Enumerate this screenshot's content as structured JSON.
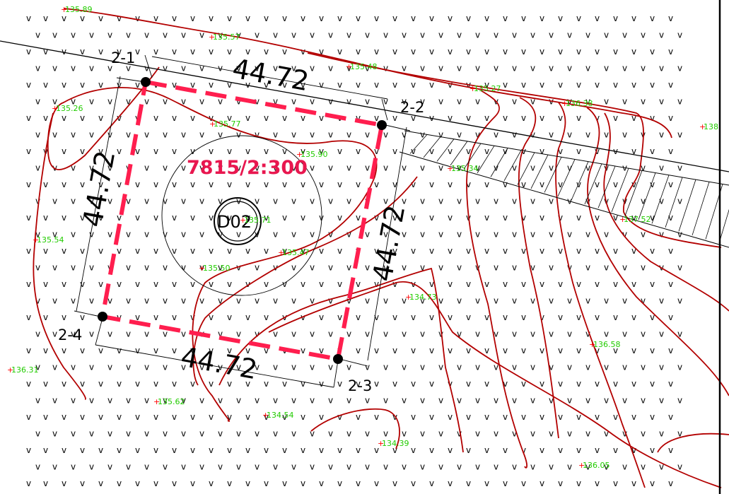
{
  "colors": {
    "boundary": "#ff1e4e",
    "contour": "#b30000",
    "spot_height_text": "#22cc00",
    "spot_height_mark": "#ff0000",
    "parcel_label": "#e8174f"
  },
  "parcel": {
    "label": "7815/2:300",
    "marker": "D02",
    "corners": [
      {
        "id": "2-1"
      },
      {
        "id": "2-2"
      },
      {
        "id": "2-3"
      },
      {
        "id": "2-4"
      }
    ],
    "dimensions": {
      "top": "44.72",
      "left": "44.72",
      "right": "44.72",
      "bottom": "44.72"
    }
  },
  "spot_heights": [
    "135.89",
    "135.57",
    "135.48",
    "135.27",
    "136.38",
    "138",
    "135.26",
    "135.77",
    "135.90",
    "135.34",
    "137.52",
    "135.54",
    "135.71",
    "135.47",
    "135.50",
    "134.73",
    "136.58",
    "136.31",
    "135.62",
    "134.54",
    "134.39",
    "136.05"
  ],
  "icons": {
    "ground_symbol": "chevron-v-icon",
    "corner_point": "filled-circle-icon",
    "spot_mark": "plus-icon"
  }
}
